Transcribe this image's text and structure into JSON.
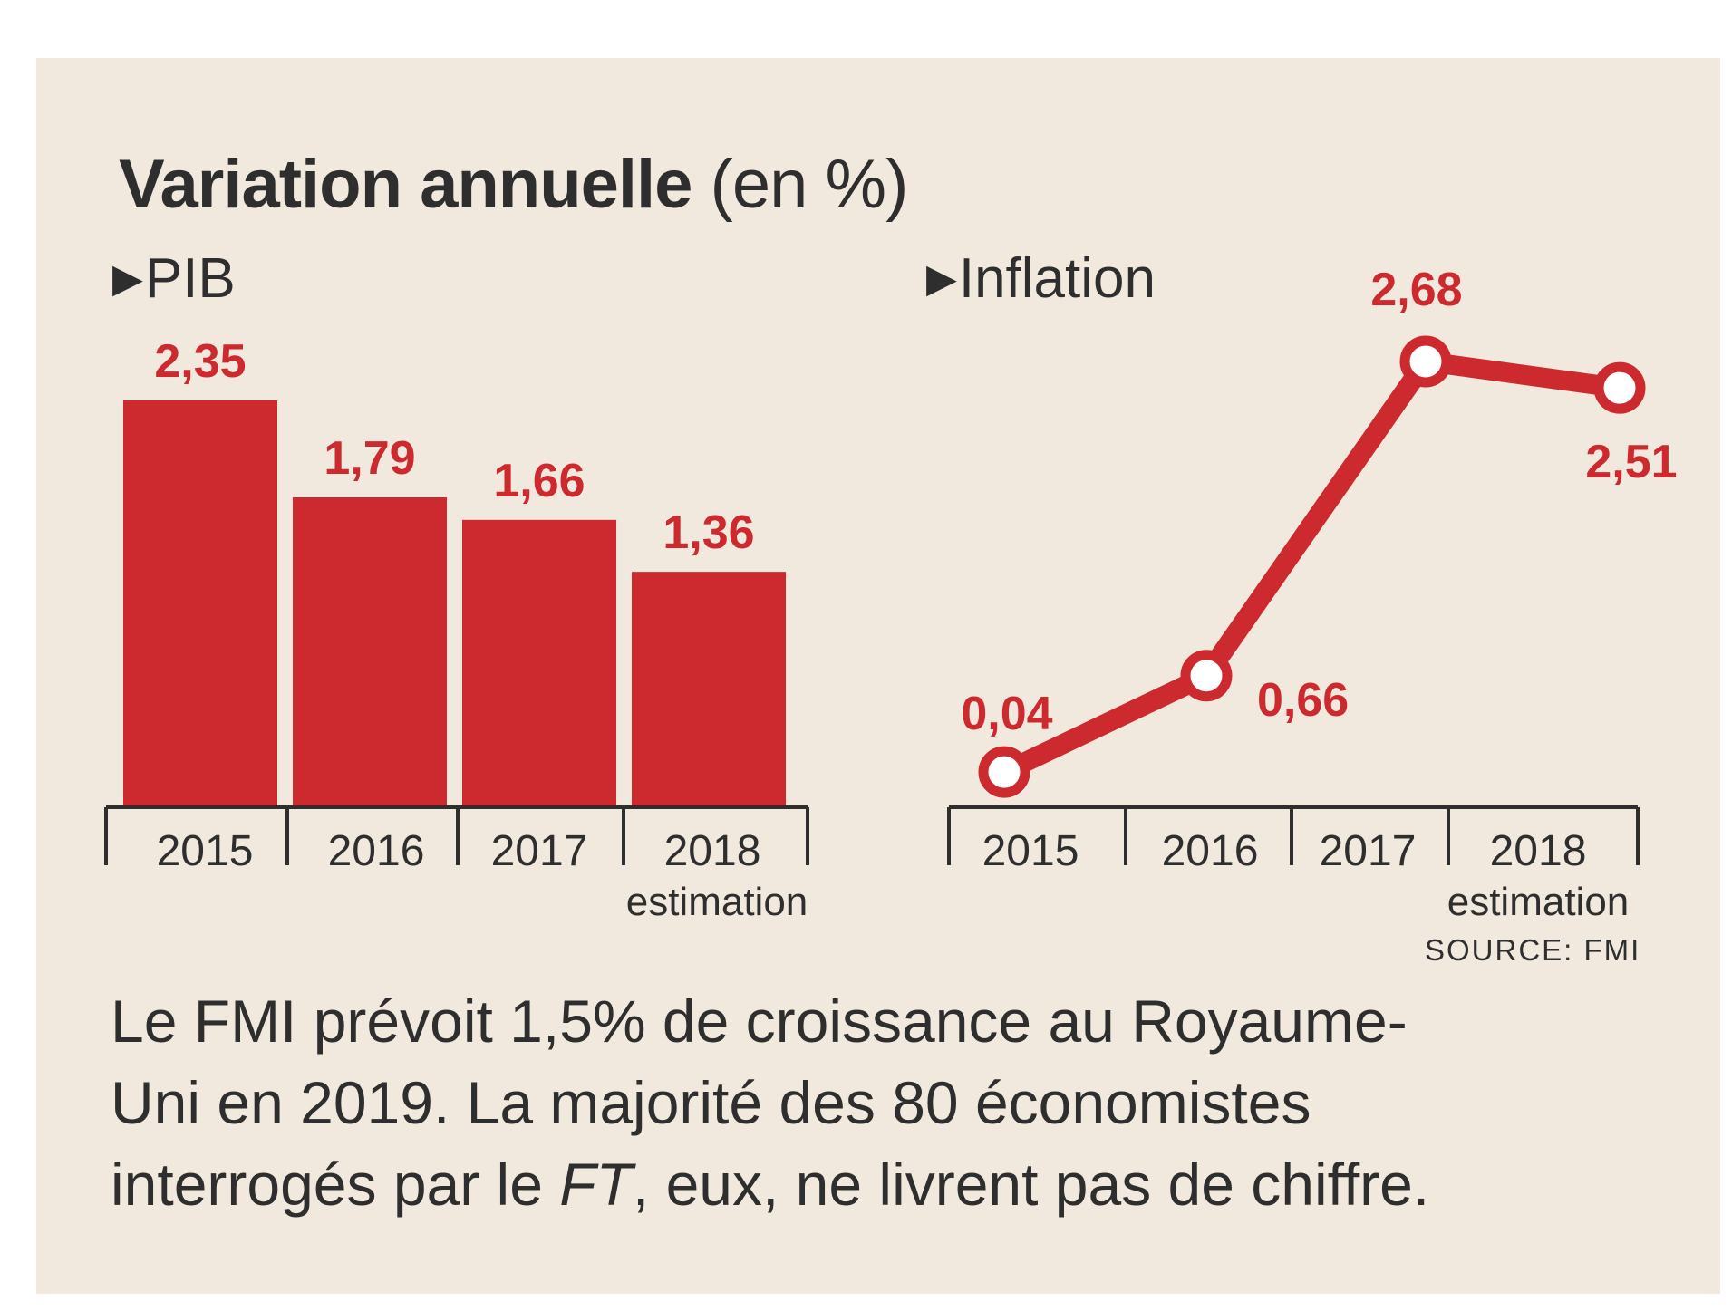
{
  "title": {
    "bold": "Variation annuelle",
    "light": "(en %)"
  },
  "colors": {
    "accent": "#cc2a2f",
    "background": "#f2e9de",
    "text": "#2e2e2e"
  },
  "marker_icon": "triangle-right-icon",
  "chart_data": [
    {
      "type": "bar",
      "title": "PIB",
      "categories": [
        "2015",
        "2016",
        "2017",
        "2018"
      ],
      "category_notes": [
        "",
        "",
        "",
        "estimation"
      ],
      "values": [
        2.35,
        1.79,
        1.66,
        1.36
      ],
      "value_labels": [
        "2,35",
        "1,79",
        "1,66",
        "1,36"
      ],
      "ylim": [
        0,
        2.35
      ]
    },
    {
      "type": "line",
      "title": "Inflation",
      "categories": [
        "2015",
        "2016",
        "2017",
        "2018"
      ],
      "category_notes": [
        "",
        "",
        "",
        "estimation"
      ],
      "values": [
        0.04,
        0.66,
        2.68,
        2.51
      ],
      "value_labels": [
        "0,04",
        "0,66",
        "2,68",
        "2,51"
      ],
      "ylim": [
        0,
        2.68
      ]
    }
  ],
  "source": "SOURCE: FMI",
  "caption": {
    "line1": "Le FMI prévoit 1,5% de croissance au Royaume-",
    "line2": "Uni en 2019. La majorité des 80 économistes",
    "line3_before": "interrogés par le ",
    "line3_italic": "FT",
    "line3_after": ", eux, ne livrent pas de chiffre."
  }
}
